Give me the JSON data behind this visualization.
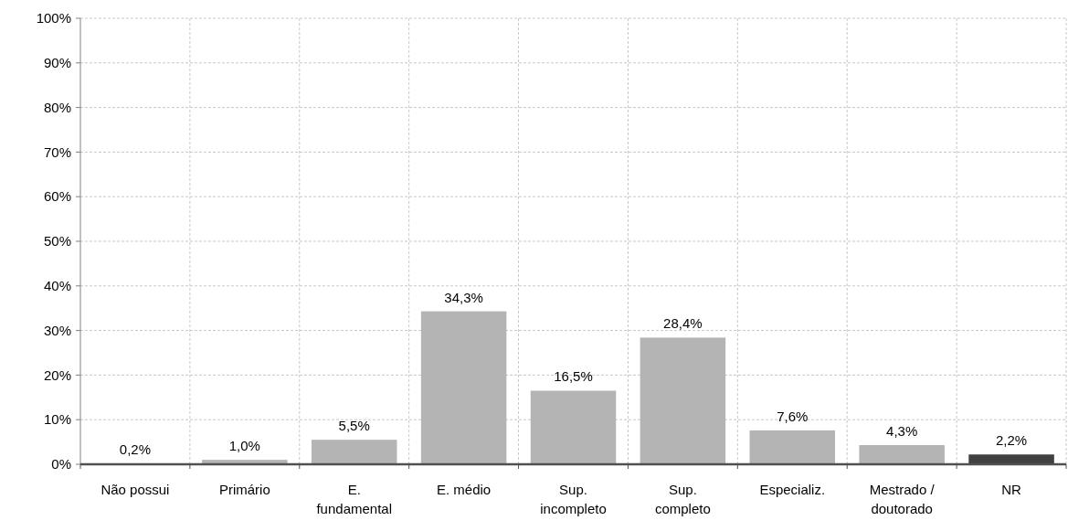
{
  "chart_data": {
    "type": "bar",
    "categories": [
      "Não possui",
      "Primário",
      "E. fundamental",
      "E. médio",
      "Sup. incompleto",
      "Sup. completo",
      "Especializ.",
      "Mestrado / doutorado",
      "NR"
    ],
    "values": [
      0.2,
      1.0,
      5.5,
      34.3,
      16.5,
      28.4,
      7.6,
      4.3,
      2.2
    ],
    "colors": [
      "#b4b4b4",
      "#b4b4b4",
      "#b4b4b4",
      "#b4b4b4",
      "#b4b4b4",
      "#b4b4b4",
      "#b4b4b4",
      "#b4b4b4",
      "#404040"
    ],
    "value_labels": [
      "0,2%",
      "1,0%",
      "5,5%",
      "34,3%",
      "16,5%",
      "28,4%",
      "7,6%",
      "4,3%",
      "2,2%"
    ],
    "ylim": [
      0,
      100
    ],
    "yticks": [
      {
        "value": 0,
        "label": "0%"
      },
      {
        "value": 10,
        "label": "10%"
      },
      {
        "value": 20,
        "label": "20%"
      },
      {
        "value": 30,
        "label": "30%"
      },
      {
        "value": 40,
        "label": "40%"
      },
      {
        "value": 50,
        "label": "50%"
      },
      {
        "value": 60,
        "label": "60%"
      },
      {
        "value": 70,
        "label": "70%"
      },
      {
        "value": 80,
        "label": "80%"
      },
      {
        "value": 90,
        "label": "90%"
      },
      {
        "value": 100,
        "label": "100%"
      }
    ],
    "grid": true
  }
}
